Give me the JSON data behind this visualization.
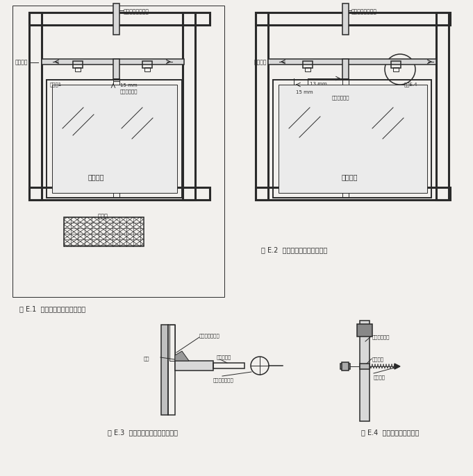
{
  "bg_color": "#f2f0ed",
  "line_color": "#2a2a2a",
  "title1": "图 E.1  热箱检测辅助装置示意图",
  "title2": "图 E.2  冷箱检测辅助装置示意图",
  "title3": "图 E.3  可调节支架固定方式示意图",
  "title4": "图 E.4  可调支撑触点示意图",
  "label_shijian1": "试件洞口",
  "label_shijian2": "试件洞口",
  "label_redian_buxiugang": "热侧不锈钢支撑架",
  "label_lengce_buxiugang": "冷侧不锈钢支撑架",
  "label_jiangru1": "见详图1",
  "label_jiangru4": "见图E.4",
  "label_15mm_1": "15 mm",
  "label_15mm_2": "15 mm",
  "label_13mm": "13 mm",
  "label_zhidian1": "可调支撑触点",
  "label_zhidian2": "可调支撑触点",
  "label_boli1": "玻璃试件",
  "label_boli2": "玻璃试件",
  "label_diare": "电热器",
  "label_neibifan": "试件洞口内壁面",
  "label_jiaodian": "胶垫",
  "label_shensuogan": "伸缩支撑杆",
  "label_suokou": "支撑杆伸缩锁扣",
  "label_buxiugang": "不锈钢支撑架",
  "label_dingwei": "定位螺母",
  "label_zhidian_e4": "支撑触点"
}
